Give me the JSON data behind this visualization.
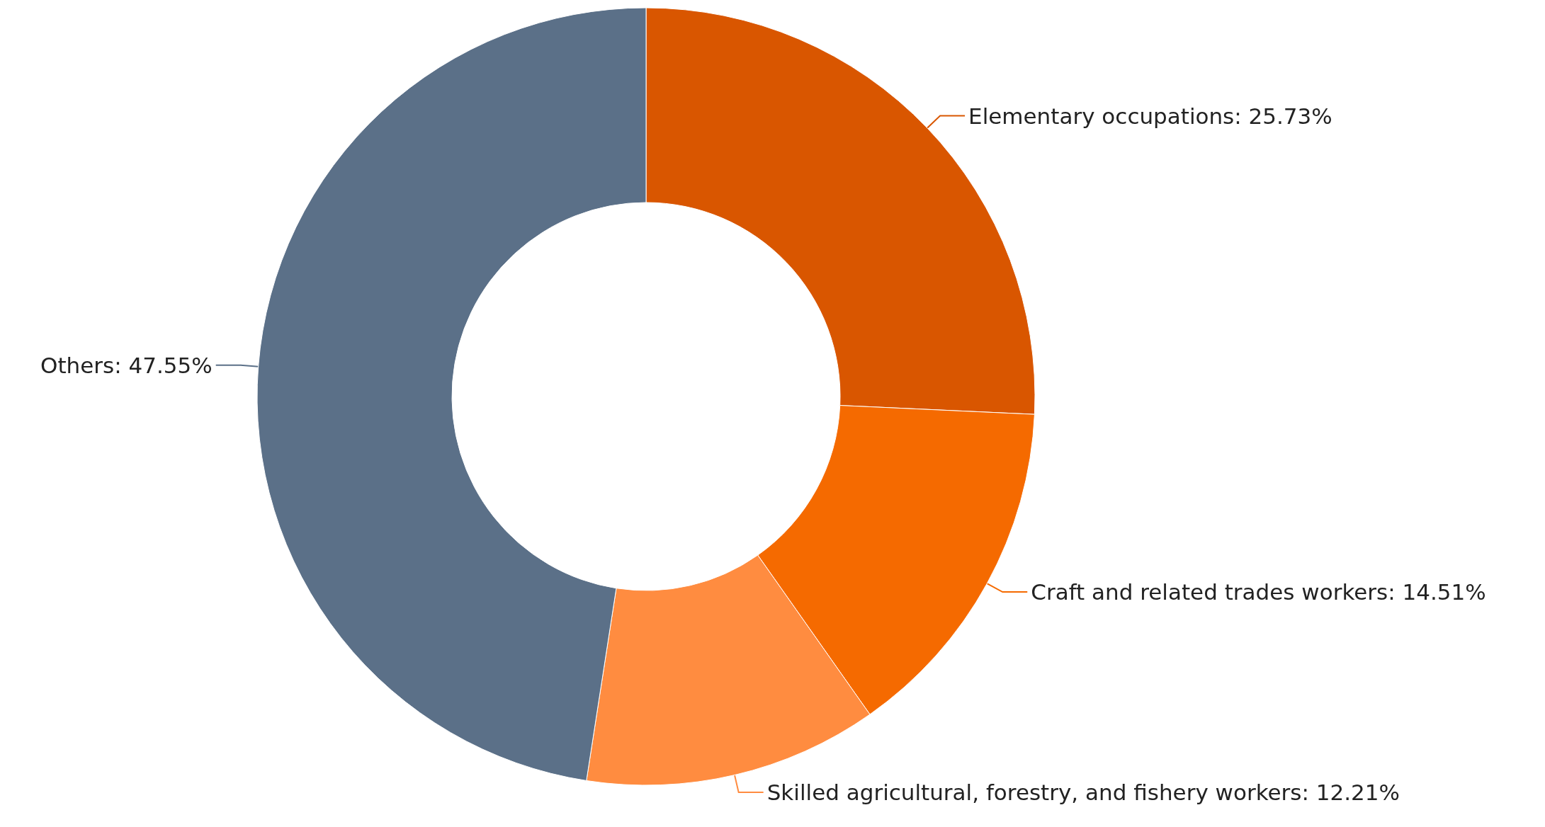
{
  "chart_data": {
    "type": "donut",
    "categories": [
      "Elementary occupations",
      "Craft and related trades workers",
      "Skilled agricultural, forestry, and fishery workers",
      "Others"
    ],
    "values": [
      25.73,
      14.51,
      12.21,
      47.55
    ],
    "value_labels": [
      "25.73%",
      "14.51%",
      "12.21%",
      "47.55%"
    ],
    "colors": [
      "#d95600",
      "#f56a00",
      "#ff8c40",
      "#5b7088"
    ],
    "legend": false
  }
}
